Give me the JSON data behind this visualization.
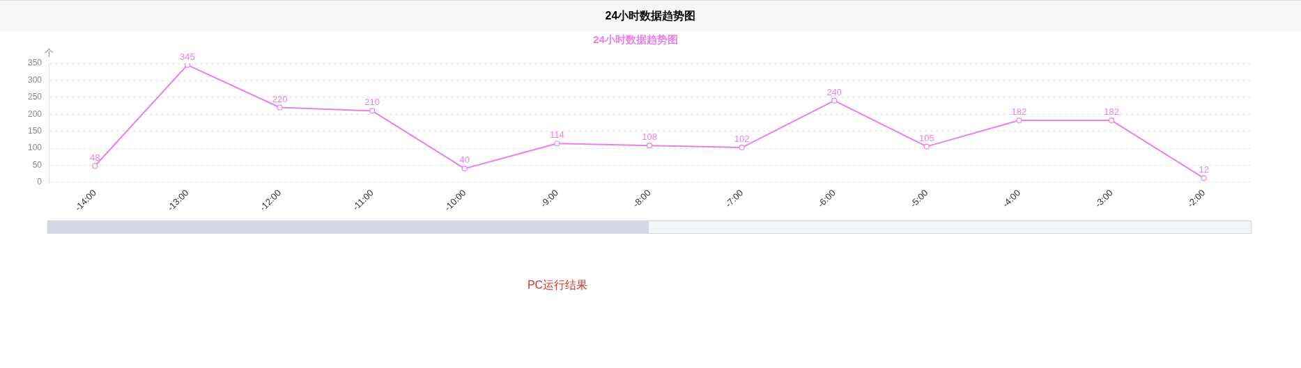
{
  "chart_data": {
    "type": "line",
    "title": "24小时数据趋势图",
    "subtitle": "24小时数据趋势图",
    "ylabel": "个",
    "categories": [
      "-14:00",
      "-13:00",
      "-12:00",
      "-11:00",
      "-10:00",
      "-9:00",
      "-8:00",
      "-7:00",
      "-6:00",
      "-5:00",
      "-4:00",
      "-3:00",
      "-2:00"
    ],
    "series": [
      {
        "color": "#e880e8",
        "values": [
          48,
          345,
          220,
          210,
          40,
          114,
          108,
          102,
          240,
          105,
          182,
          182,
          12
        ]
      }
    ],
    "ylim": [
      0,
      350
    ],
    "yticks": [
      0,
      50,
      100,
      150,
      200,
      250,
      300,
      350
    ],
    "grid": "y",
    "legend": false,
    "marker": "circle",
    "line_style": "solid",
    "data_labels": true,
    "annotations": [
      "PC运行结果"
    ]
  }
}
